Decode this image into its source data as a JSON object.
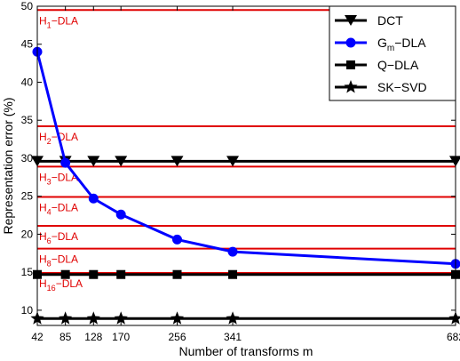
{
  "chart_data": {
    "type": "line",
    "xlabel": "Number of transforms m",
    "ylabel": "Representation error (%)",
    "xlim": [
      42,
      682
    ],
    "ylim": [
      8,
      50
    ],
    "x_ticks": [
      42,
      85,
      128,
      170,
      256,
      341,
      682
    ],
    "y_ticks": [
      10,
      15,
      20,
      25,
      30,
      35,
      40,
      45,
      50
    ],
    "grid": false,
    "legend_position": "top-right",
    "x": [
      42,
      85,
      128,
      170,
      256,
      341,
      682
    ],
    "series": [
      {
        "name": "DCT",
        "color": "#000000",
        "marker": "triangle-down",
        "values": [
          29.6,
          29.6,
          29.6,
          29.6,
          29.6,
          29.6,
          29.6
        ]
      },
      {
        "name": "G_m−DLA",
        "color": "#0000ff",
        "marker": "circle",
        "values": [
          44.0,
          29.4,
          24.7,
          22.6,
          19.3,
          17.7,
          16.1
        ]
      },
      {
        "name": "Q−DLA",
        "color": "#000000",
        "marker": "square",
        "values": [
          14.7,
          14.7,
          14.7,
          14.7,
          14.7,
          14.7,
          14.7
        ]
      },
      {
        "name": "SK−SVD",
        "color": "#000000",
        "marker": "star",
        "values": [
          8.9,
          8.9,
          8.9,
          8.9,
          8.9,
          8.9,
          8.9
        ]
      }
    ],
    "reference_lines": [
      {
        "name": "H",
        "sub": "1",
        "suffix": "−DLA",
        "value": 49.5,
        "color": "#e00000"
      },
      {
        "name": "H",
        "sub": "2",
        "suffix": "−DLA",
        "value": 34.2,
        "color": "#e00000"
      },
      {
        "name": "H",
        "sub": "3",
        "suffix": "−DLA",
        "value": 28.9,
        "color": "#e00000"
      },
      {
        "name": "H",
        "sub": "4",
        "suffix": "−DLA",
        "value": 24.9,
        "color": "#e00000"
      },
      {
        "name": "H",
        "sub": "6",
        "suffix": "−DLA",
        "value": 21.1,
        "color": "#e00000"
      },
      {
        "name": "H",
        "sub": "8",
        "suffix": "−DLA",
        "value": 18.1,
        "color": "#e00000"
      },
      {
        "name": "H",
        "sub": "16",
        "suffix": "−DLA",
        "value": 14.9,
        "color": "#e00000"
      }
    ]
  }
}
